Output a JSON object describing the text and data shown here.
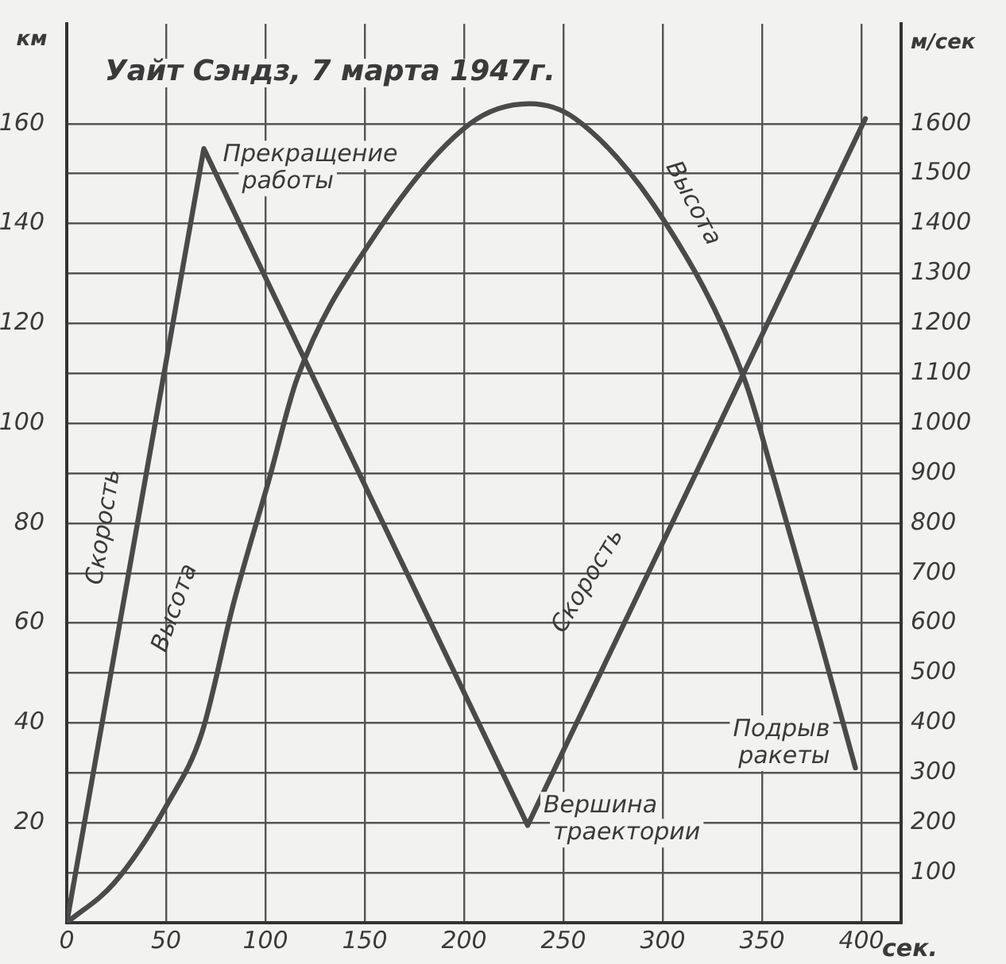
{
  "chart_data": {
    "type": "line",
    "title": "Уайт Сэндз, 7 марта 1947г.",
    "xlabel": "сек.",
    "ylabel": "км",
    "y2label": "м/сек",
    "series": [
      {
        "color": "#4a4a4a",
        "axis": "y",
        "x": [
          0,
          24,
          51,
          68,
          84,
          102,
          116,
          154,
          203,
          233,
          256,
          300,
          341,
          356,
          379,
          397
        ],
        "values": [
          0,
          8,
          24,
          38,
          64,
          89,
          109,
          137,
          160,
          164,
          161,
          141,
          109,
          89,
          57,
          31
        ]
      },
      {
        "color": "#4a4a4a",
        "axis": "y2",
        "x": [
          0,
          69,
          232,
          402
        ],
        "values": [
          0,
          1550,
          195,
          1610
        ]
      }
    ],
    "xlim": [
      0,
      420
    ],
    "xticks": [
      0,
      50,
      100,
      150,
      200,
      250,
      300,
      350,
      400
    ],
    "ylim": [
      0,
      180
    ],
    "yticks": [
      20,
      40,
      60,
      80,
      100,
      120,
      140,
      160
    ],
    "y2lim": [
      0,
      1800
    ],
    "y2ticks": [
      100,
      200,
      300,
      400,
      500,
      600,
      700,
      800,
      900,
      1000,
      1100,
      1200,
      1300,
      1400,
      1500,
      1600
    ],
    "grid": true,
    "legend": false,
    "marker": "none",
    "line_style": "solid",
    "annotations": [
      {
        "text": "Прекращение работы",
        "x": 69,
        "y": 155
      },
      {
        "text": "Вершина траектории",
        "x": 232,
        "y": 19.5
      },
      {
        "text": "Подрыв ракеты",
        "x": 397,
        "y": 31
      },
      "Скорость",
      "Высота",
      "Скорость",
      "Высота"
    ]
  }
}
